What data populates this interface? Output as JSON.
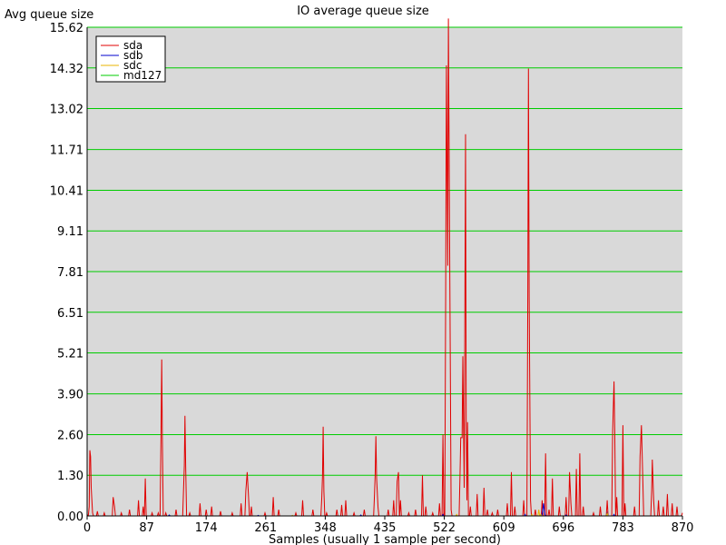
{
  "chart_data": {
    "type": "line",
    "title": "IO average queue size",
    "ylabel": "Avg queue size",
    "xlabel": "Samples (usually 1 sample per second)",
    "xlim": [
      0,
      870
    ],
    "ylim": [
      0,
      15.62
    ],
    "x_ticks": [
      "0",
      "87",
      "174",
      "261",
      "348",
      "435",
      "522",
      "609",
      "696",
      "783",
      "870"
    ],
    "y_ticks": [
      "0.00",
      "1.30",
      "2.60",
      "3.90",
      "5.21",
      "6.51",
      "7.81",
      "9.11",
      "10.41",
      "11.71",
      "13.02",
      "14.32",
      "15.62"
    ],
    "grid": true,
    "legend_position": "top-left",
    "colors": {
      "sda": "#e00000",
      "sdb": "#0000cc",
      "sdc": "#e8b400",
      "md127": "#00cc00",
      "grid": "#00cc00",
      "plot_bg": "#d9d9d9"
    },
    "series": [
      {
        "name": "sda",
        "color": "#e00000",
        "points": [
          [
            0,
            0.05
          ],
          [
            3,
            0.3
          ],
          [
            4,
            2.1
          ],
          [
            5,
            1.9
          ],
          [
            6,
            0.9
          ],
          [
            8,
            0.1
          ],
          [
            15,
            0.15
          ],
          [
            25,
            0.1
          ],
          [
            38,
            0.6
          ],
          [
            40,
            0.3
          ],
          [
            50,
            0.1
          ],
          [
            62,
            0.2
          ],
          [
            75,
            0.5
          ],
          [
            82,
            0.3
          ],
          [
            85,
            1.2
          ],
          [
            95,
            0.1
          ],
          [
            104,
            0.1
          ],
          [
            108,
            2.5
          ],
          [
            109,
            5.0
          ],
          [
            110,
            2.5
          ],
          [
            115,
            0.1
          ],
          [
            130,
            0.2
          ],
          [
            141,
            0.9
          ],
          [
            142,
            1.6
          ],
          [
            143,
            3.2
          ],
          [
            144,
            1.6
          ],
          [
            150,
            0.1
          ],
          [
            165,
            0.4
          ],
          [
            174,
            0.2
          ],
          [
            182,
            0.3
          ],
          [
            195,
            0.15
          ],
          [
            212,
            0.1
          ],
          [
            225,
            0.4
          ],
          [
            232,
            0.8
          ],
          [
            234,
            1.4
          ],
          [
            236,
            0.6
          ],
          [
            240,
            0.3
          ],
          [
            260,
            0.1
          ],
          [
            272,
            0.6
          ],
          [
            280,
            0.2
          ],
          [
            305,
            0.1
          ],
          [
            315,
            0.5
          ],
          [
            330,
            0.2
          ],
          [
            343,
            0.6
          ],
          [
            344,
            1.3
          ],
          [
            345,
            2.85
          ],
          [
            346,
            0.8
          ],
          [
            350,
            0.1
          ],
          [
            365,
            0.2
          ],
          [
            372,
            0.35
          ],
          [
            378,
            0.5
          ],
          [
            390,
            0.1
          ],
          [
            405,
            0.2
          ],
          [
            420,
            0.7
          ],
          [
            421,
            1.3
          ],
          [
            422,
            2.55
          ],
          [
            423,
            1.2
          ],
          [
            425,
            0.3
          ],
          [
            440,
            0.2
          ],
          [
            448,
            0.5
          ],
          [
            453,
            1.1
          ],
          [
            455,
            1.4
          ],
          [
            458,
            0.5
          ],
          [
            470,
            0.1
          ],
          [
            480,
            0.2
          ],
          [
            490,
            1.3
          ],
          [
            495,
            0.3
          ],
          [
            505,
            0.1
          ],
          [
            515,
            0.4
          ],
          [
            520,
            2.6
          ],
          [
            524,
            7.1
          ],
          [
            525,
            14.4
          ],
          [
            527,
            8.0
          ],
          [
            528,
            15.9
          ],
          [
            530,
            8.0
          ],
          [
            532,
            0.2
          ],
          [
            545,
            1.3
          ],
          [
            546,
            2.5
          ],
          [
            548,
            2.5
          ],
          [
            549,
            5.1
          ],
          [
            551,
            0.9
          ],
          [
            552,
            6.1
          ],
          [
            553,
            12.2
          ],
          [
            554,
            3.0
          ],
          [
            555,
            0.5
          ],
          [
            556,
            3.0
          ],
          [
            560,
            0.3
          ],
          [
            570,
            0.7
          ],
          [
            580,
            0.9
          ],
          [
            585,
            0.2
          ],
          [
            592,
            0.1
          ],
          [
            600,
            0.2
          ],
          [
            614,
            0.4
          ],
          [
            620,
            1.4
          ],
          [
            625,
            0.3
          ],
          [
            638,
            0.5
          ],
          [
            644,
            7.0
          ],
          [
            645,
            14.3
          ],
          [
            646,
            7.0
          ],
          [
            648,
            0.5
          ],
          [
            655,
            0.2
          ],
          [
            665,
            0.5
          ],
          [
            670,
            2.0
          ],
          [
            675,
            0.2
          ],
          [
            680,
            1.2
          ],
          [
            690,
            0.3
          ],
          [
            700,
            0.6
          ],
          [
            705,
            1.4
          ],
          [
            707,
            0.4
          ],
          [
            715,
            1.5
          ],
          [
            720,
            2.0
          ],
          [
            725,
            0.3
          ],
          [
            740,
            0.1
          ],
          [
            750,
            0.3
          ],
          [
            760,
            0.5
          ],
          [
            768,
            2.7
          ],
          [
            770,
            4.3
          ],
          [
            771,
            2.7
          ],
          [
            774,
            0.6
          ],
          [
            783,
            2.9
          ],
          [
            786,
            0.4
          ],
          [
            800,
            0.3
          ],
          [
            808,
            1.9
          ],
          [
            810,
            2.9
          ],
          [
            812,
            1.2
          ],
          [
            825,
            0.8
          ],
          [
            826,
            1.8
          ],
          [
            828,
            0.5
          ],
          [
            835,
            0.5
          ],
          [
            842,
            0.3
          ],
          [
            848,
            0.7
          ],
          [
            855,
            0.4
          ],
          [
            862,
            0.3
          ],
          [
            870,
            0.1
          ]
        ]
      },
      {
        "name": "sdb",
        "color": "#0000cc",
        "points": [
          [
            0,
            0
          ],
          [
            120,
            0.03
          ],
          [
            250,
            0.02
          ],
          [
            400,
            0.03
          ],
          [
            520,
            0.05
          ],
          [
            640,
            0.05
          ],
          [
            665,
            0.05
          ],
          [
            667,
            0.4
          ],
          [
            669,
            0.05
          ],
          [
            700,
            0.03
          ],
          [
            760,
            0.1
          ],
          [
            770,
            0.05
          ],
          [
            870,
            0
          ]
        ]
      },
      {
        "name": "sdc",
        "color": "#e8b400",
        "points": [
          [
            0,
            0
          ],
          [
            300,
            0.02
          ],
          [
            540,
            0.05
          ],
          [
            650,
            0.05
          ],
          [
            660,
            0.2
          ],
          [
            663,
            0.05
          ],
          [
            760,
            0.08
          ],
          [
            870,
            0
          ]
        ]
      },
      {
        "name": "md127",
        "color": "#00cc00",
        "points": [
          [
            0,
            0
          ],
          [
            870,
            0
          ]
        ]
      }
    ]
  }
}
